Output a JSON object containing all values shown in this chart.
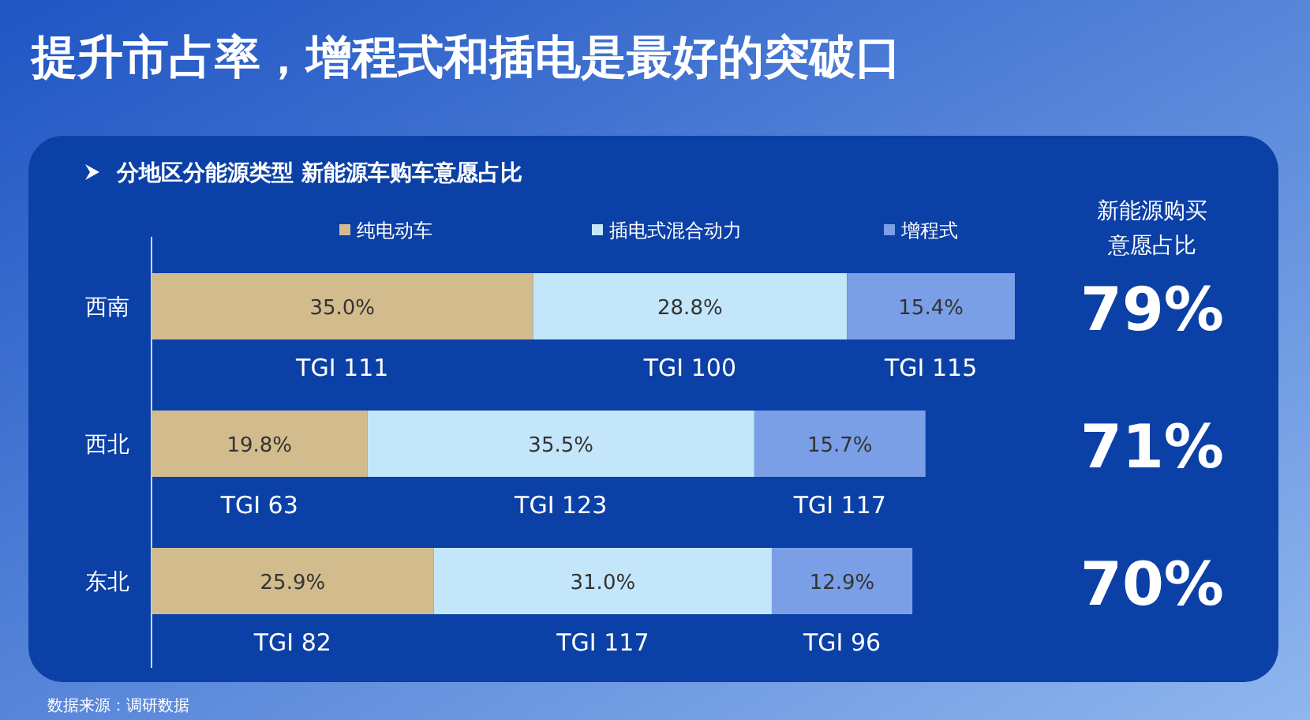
{
  "chart_data": {
    "type": "bar",
    "orientation": "horizontal",
    "stacked": true,
    "title": "提升市占率，增程式和插电是最好的突破口",
    "subtitle": "分地区分能源类型 新能源车购车意愿占比",
    "categories": [
      "西南",
      "西北",
      "东北"
    ],
    "series": [
      {
        "name": "纯电动车",
        "color": "#d2bc8e",
        "values": [
          35.0,
          19.8,
          25.9
        ],
        "value_labels": [
          "35.0%",
          "19.8%",
          "25.9%"
        ]
      },
      {
        "name": "插电式混合动力",
        "color": "#c3e6fb",
        "values": [
          28.8,
          35.5,
          31.0
        ],
        "value_labels": [
          "28.8%",
          "35.5%",
          "31.0%"
        ]
      },
      {
        "name": "增程式",
        "color": "#7b9fe6",
        "values": [
          15.4,
          15.7,
          12.9
        ],
        "value_labels": [
          "15.4%",
          "15.7%",
          "12.9%"
        ]
      }
    ],
    "totals": [
      "79%",
      "71%",
      "70%"
    ],
    "legend": "top",
    "annotations": [
      "新能源购买意愿占比",
      "TGI 111",
      "TGI 100",
      "TGI 115",
      "TGI 63",
      "TGI 123",
      "TGI 117",
      "TGI 82",
      "TGI 117",
      "TGI 96",
      "数据来源：调研数据"
    ]
  }
}
